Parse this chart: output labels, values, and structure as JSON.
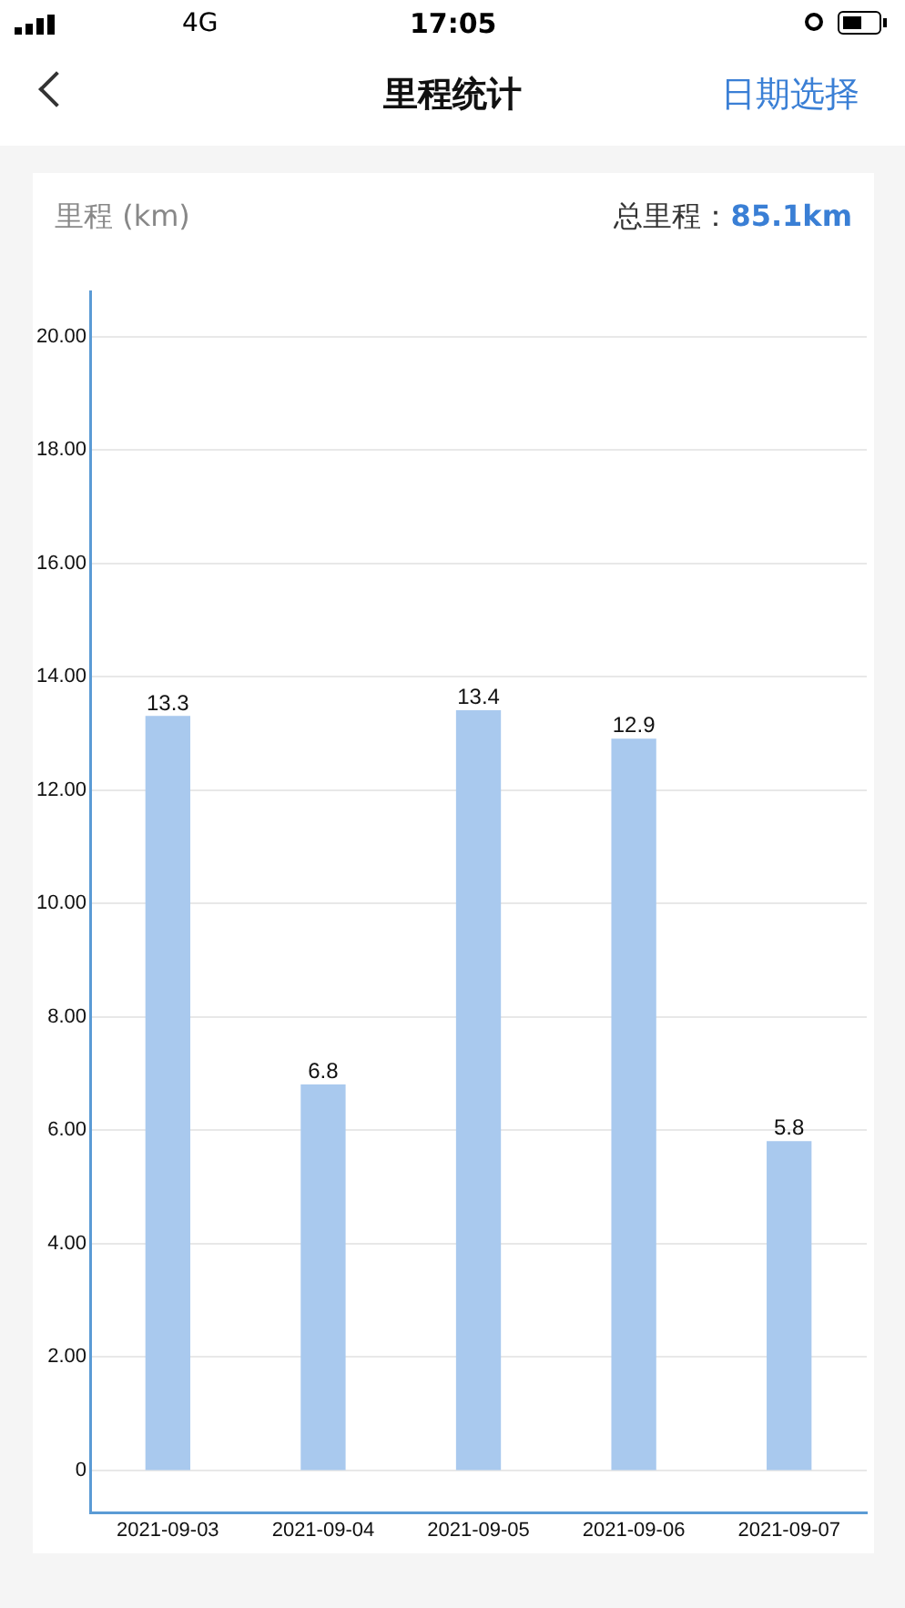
{
  "chart_data": {
    "type": "bar",
    "title": "里程统计",
    "ylabel": "里程 (km)",
    "annotations": [
      "4G",
      "17:05",
      "日期选择",
      "总里程：",
      "85.1km"
    ],
    "categories": [
      "2021-09-03",
      "2021-09-04",
      "2021-09-05",
      "2021-09-06",
      "2021-09-07"
    ],
    "values": [
      13.3,
      6.8,
      13.4,
      12.9,
      5.8
    ],
    "color": "#a9c9ee",
    "data_labels": true,
    "ylim": [
      -0.75,
      20.8
    ],
    "yticks": [
      0,
      {
        "value": 2,
        "label": "2.00"
      },
      {
        "value": 4,
        "label": "4.00"
      },
      {
        "value": 6,
        "label": "6.00"
      },
      {
        "value": 8,
        "label": "8.00"
      },
      {
        "value": 10,
        "label": "10.00"
      },
      {
        "value": 12,
        "label": "12.00"
      },
      {
        "value": 14,
        "label": "14.00"
      },
      {
        "value": 16,
        "label": "16.00"
      },
      {
        "value": 18,
        "label": "18.00"
      },
      {
        "value": 20,
        "label": "20.00"
      }
    ],
    "grid": "y",
    "legend": false
  }
}
